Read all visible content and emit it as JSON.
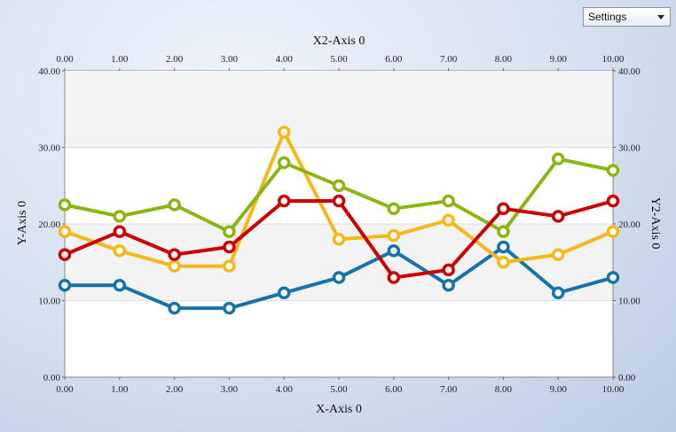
{
  "settings": {
    "label": "Settings",
    "icon": "chevron-down-icon"
  },
  "chart_data": {
    "type": "line",
    "x2label": "X2-Axis 0",
    "xlabel": "X-Axis 0",
    "ylabel": "Y-Axis 0",
    "y2label": "Y2-Axis 0",
    "xlim": [
      0,
      10
    ],
    "ylim": [
      0,
      40
    ],
    "x_ticks": [
      "0.00",
      "1.00",
      "2.00",
      "3.00",
      "4.00",
      "5.00",
      "6.00",
      "7.00",
      "8.00",
      "9.00",
      "10.00"
    ],
    "y_ticks": [
      "0.00",
      "10.00",
      "20.00",
      "30.00",
      "40.00"
    ],
    "grid": true,
    "bands": [
      [
        10,
        20
      ],
      [
        30,
        40
      ]
    ],
    "series": [
      {
        "color": "#1473a8",
        "x": [
          0,
          1,
          2,
          3,
          4,
          5,
          6,
          7,
          8,
          9,
          10
        ],
        "y": [
          12,
          12,
          9,
          9,
          11,
          13,
          16.5,
          12,
          17,
          11,
          13
        ]
      },
      {
        "color": "#f5b818",
        "x": [
          0,
          1,
          2,
          3,
          4,
          5,
          6,
          7,
          8,
          9,
          10
        ],
        "y": [
          19,
          16.5,
          14.5,
          14.5,
          32,
          18,
          18.5,
          20.5,
          15,
          16,
          19
        ]
      },
      {
        "color": "#8ab512",
        "x": [
          0,
          1,
          2,
          3,
          4,
          5,
          6,
          7,
          8,
          9,
          10
        ],
        "y": [
          22.5,
          21,
          22.5,
          19,
          28,
          25,
          22,
          23,
          19,
          28.5,
          27
        ]
      },
      {
        "color": "#cc0000",
        "x": [
          0,
          1,
          2,
          3,
          4,
          5,
          6,
          7,
          8,
          9,
          10
        ],
        "y": [
          16,
          19,
          16,
          17,
          23,
          23,
          13,
          14,
          22,
          21,
          23
        ]
      }
    ]
  }
}
